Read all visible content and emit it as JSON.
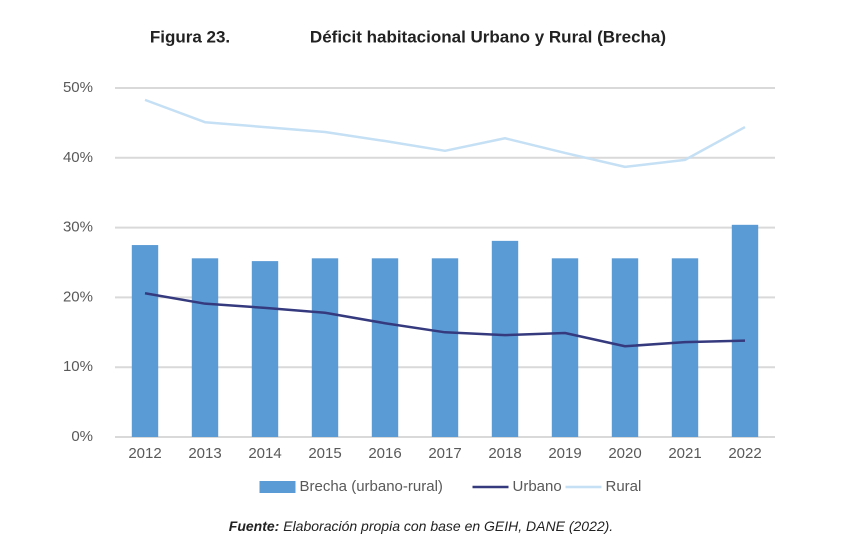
{
  "chart_data": {
    "type": "bar",
    "figure_label": "Figura 23.",
    "title": "Déficit habitacional Urbano y Rural (Brecha)",
    "categories": [
      "2012",
      "2013",
      "2014",
      "2015",
      "2016",
      "2017",
      "2018",
      "2019",
      "2020",
      "2021",
      "2022"
    ],
    "series": [
      {
        "name": "Brecha (urbano-rural)",
        "type": "bar",
        "color": "#5b9bd5",
        "values": [
          27.5,
          25.6,
          25.2,
          25.6,
          25.6,
          25.6,
          28.1,
          25.6,
          25.6,
          25.6,
          30.4
        ]
      },
      {
        "name": "Urbano",
        "type": "line",
        "color": "#353a7e",
        "values": [
          20.6,
          19.1,
          18.5,
          17.8,
          16.3,
          15.0,
          14.6,
          14.9,
          13.0,
          13.6,
          13.8
        ]
      },
      {
        "name": "Rural",
        "type": "line",
        "color": "#c5e0f4",
        "values": [
          48.3,
          45.1,
          44.4,
          43.7,
          42.4,
          41.0,
          42.8,
          40.7,
          38.7,
          39.7,
          44.4
        ]
      }
    ],
    "ylim": [
      0,
      50
    ],
    "yticks": [
      {
        "value": 0,
        "label": "0%"
      },
      {
        "value": 10,
        "label": "10%"
      },
      {
        "value": 20,
        "label": "20%"
      },
      {
        "value": 30,
        "label": "30%"
      },
      {
        "value": 40,
        "label": "40%"
      },
      {
        "value": 50,
        "label": "50%"
      }
    ],
    "grid": true,
    "legend": "bottom",
    "source_label": "Fuente:",
    "source": "Elaboración propia con base en GEIH, DANE (2022)."
  }
}
